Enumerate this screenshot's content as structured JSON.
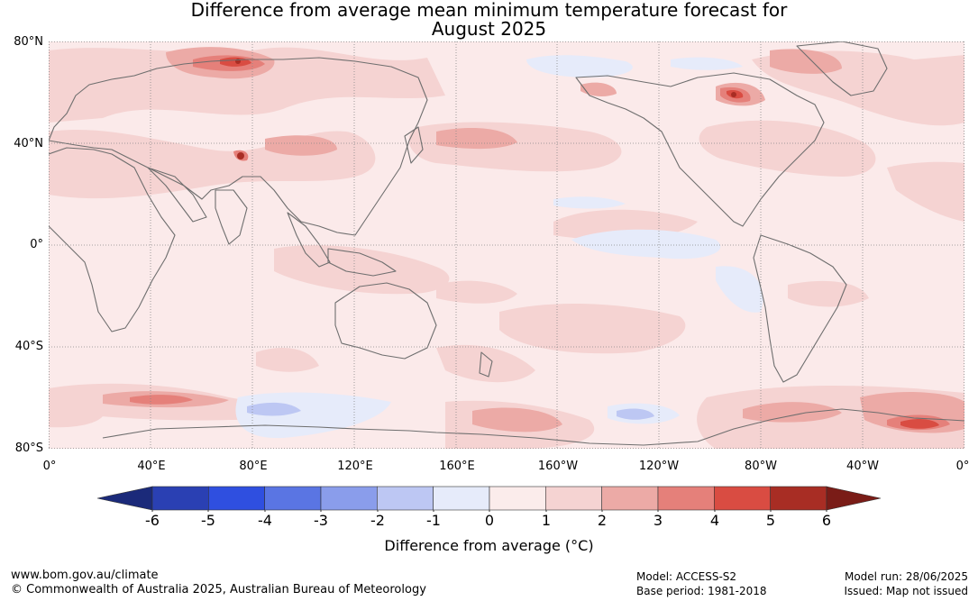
{
  "title": {
    "line1": "Difference from average mean minimum temperature forecast for",
    "line2": "August 2025"
  },
  "map": {
    "lat_labels": [
      "80°N",
      "40°N",
      "0°",
      "40°S",
      "80°S"
    ],
    "lon_labels": [
      "0°",
      "40°E",
      "80°E",
      "120°E",
      "160°E",
      "160°W",
      "120°W",
      "80°W",
      "40°W",
      "0°"
    ],
    "graticule": "dotted"
  },
  "colorbar": {
    "ticks": [
      "-6",
      "-5",
      "-4",
      "-3",
      "-2",
      "-1",
      "0",
      "1",
      "2",
      "3",
      "4",
      "5",
      "6"
    ],
    "colors": [
      "#1b2a7a",
      "#2a40b3",
      "#2f4fe0",
      "#5a75e3",
      "#8a9deb",
      "#bdc7f3",
      "#e6ebfa",
      "#fbeceb",
      "#f5d3d2",
      "#ecaaa6",
      "#e5807a",
      "#d94c42",
      "#a82d24",
      "#7a1c17"
    ],
    "label": "Difference from average (°C)"
  },
  "footer": {
    "url": "www.bom.gov.au/climate",
    "copyright": "© Commonwealth of Australia 2025, Australian Bureau of Meteorology",
    "model": "Model: ACCESS-S2",
    "base_period": "Base period: 1981-2018",
    "model_run": "Model run: 28/06/2025",
    "issued": "Issued: Map not issued"
  }
}
